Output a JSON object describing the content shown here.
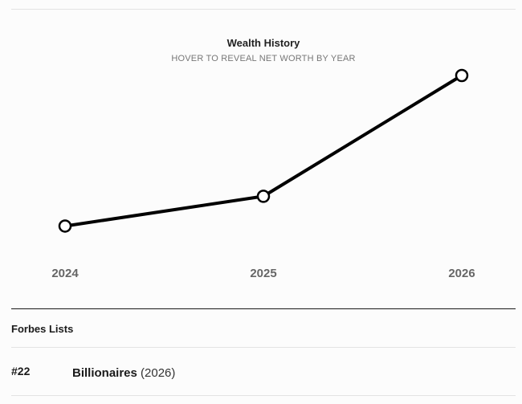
{
  "chart_data": {
    "type": "line",
    "title": "Wealth History",
    "subtitle": "HOVER TO REVEAL NET WORTH BY YEAR",
    "categories": [
      "2024",
      "2025",
      "2026"
    ],
    "series": [
      {
        "values": [
          0.09,
          0.27,
          1.0
        ]
      }
    ],
    "values_note": "relative heights only; axis has no printed values",
    "grid": false,
    "line_color": "#000000",
    "marker_fill": "#ffffff"
  },
  "lists": {
    "section_title": "Forbes Lists",
    "items": [
      {
        "rank": "#22",
        "name": "Billionaires",
        "year": "(2026)"
      }
    ]
  }
}
